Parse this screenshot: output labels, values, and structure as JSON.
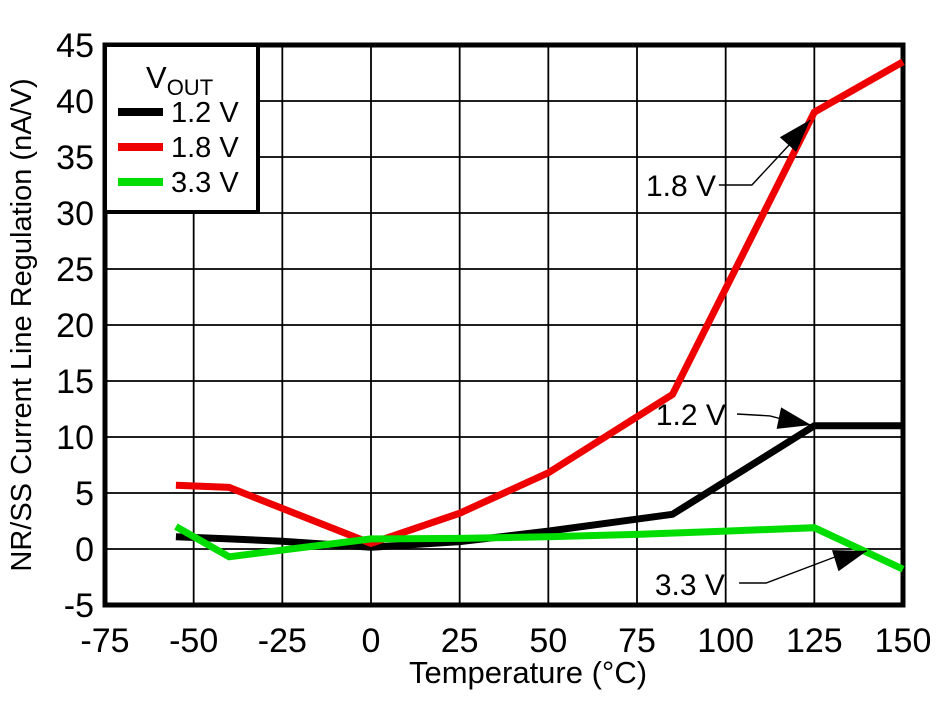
{
  "chart_data": {
    "type": "line",
    "title": "",
    "xlabel": "Temperature (°C)",
    "ylabel": "NR/SS Current Line Regulation (nA/V)",
    "xlim": [
      -75,
      150
    ],
    "ylim": [
      -5,
      45
    ],
    "xticks": [
      -75,
      -50,
      -25,
      0,
      25,
      50,
      75,
      100,
      125,
      150
    ],
    "yticks": [
      -5,
      0,
      5,
      10,
      15,
      20,
      25,
      30,
      35,
      40,
      45
    ],
    "grid": true,
    "legend": {
      "position": "top-left",
      "title_main": "V",
      "title_sub": "OUT"
    },
    "series": [
      {
        "name": "1.2 V",
        "color": "#000000",
        "points": [
          [
            -55,
            1.1
          ],
          [
            -40,
            0.9
          ],
          [
            -25,
            0.7
          ],
          [
            0,
            0.15
          ],
          [
            25,
            0.65
          ],
          [
            50,
            1.6
          ],
          [
            85,
            3.1
          ],
          [
            125,
            11
          ],
          [
            150,
            11
          ]
        ]
      },
      {
        "name": "1.8 V",
        "color": "#ee0000",
        "points": [
          [
            -55,
            5.7
          ],
          [
            -40,
            5.5
          ],
          [
            0,
            0.5
          ],
          [
            25,
            3.2
          ],
          [
            50,
            6.8
          ],
          [
            85,
            13.8
          ],
          [
            125,
            39
          ],
          [
            150,
            43.5
          ]
        ]
      },
      {
        "name": "3.3 V",
        "color": "#00dd00",
        "points": [
          [
            -55,
            2.0
          ],
          [
            -40,
            -0.7
          ],
          [
            0,
            0.9
          ],
          [
            25,
            0.95
          ],
          [
            50,
            1.1
          ],
          [
            75,
            1.3
          ],
          [
            100,
            1.6
          ],
          [
            125,
            1.9
          ],
          [
            150,
            -1.8
          ]
        ]
      }
    ],
    "annotations": [
      {
        "label": "1.8 V",
        "text_tv": [
          87.4,
          31.5
        ],
        "leader_tv": [
          [
            98.1,
            32.5
          ],
          [
            107.4,
            32.5
          ],
          [
            120.9,
            37.1
          ],
          [
            123.8,
            38.3
          ]
        ],
        "tip_tv": [
          123.8,
          38.3
        ],
        "angle_deg": -48
      },
      {
        "label": "1.2 V",
        "text_tv": [
          90.2,
          11.07
        ],
        "leader_tv": [
          [
            103.2,
            12.05
          ],
          [
            112.5,
            11.88
          ],
          [
            118.0,
            11.43
          ],
          [
            124.1,
            11.07
          ]
        ],
        "tip_tv": [
          124.1,
          11.07
        ],
        "angle_deg": 12
      },
      {
        "label": "3.3 V",
        "text_tv": [
          89.9,
          -4.11
        ],
        "leader_tv": [
          [
            103.8,
            -3.04
          ],
          [
            111.4,
            -3.04
          ],
          [
            130.8,
            -0.71
          ],
          [
            139.8,
            -0.18
          ]
        ],
        "tip_tv": [
          139.8,
          -0.18
        ],
        "angle_deg": -17
      }
    ],
    "colors": {
      "axis": "#000000",
      "grid": "#000000",
      "background": "#ffffff"
    }
  }
}
